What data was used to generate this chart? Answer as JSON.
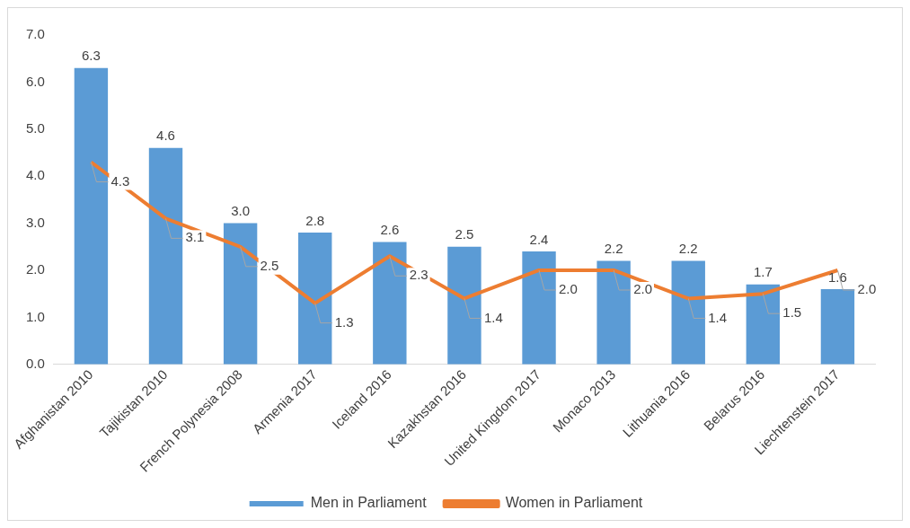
{
  "chart_data": {
    "type": "bar",
    "categories": [
      "Afghanistan 2010",
      "Tajikistan 2010",
      "French Polynesia 2008",
      "Armenia 2017",
      "Iceland 2016",
      "Kazakhstan 2016",
      "United Kingdom 2017",
      "Monaco 2013",
      "Lithuania 2016",
      "Belarus 2016",
      "Liechtenstein 2017"
    ],
    "series": [
      {
        "name": "Men in Parliament",
        "color": "#5b9bd5",
        "values": [
          6.3,
          4.6,
          3.0,
          2.8,
          2.6,
          2.5,
          2.4,
          2.2,
          2.2,
          1.7,
          1.6
        ],
        "value_labels": [
          "6.3",
          "4.6",
          "3.0",
          "2.8",
          "2.6",
          "2.5",
          "2.4",
          "2.2",
          "2.2",
          "1.7",
          "1.6"
        ]
      },
      {
        "name": "Women in Parliament",
        "type": "line",
        "color": "#ed7d31",
        "values": [
          4.3,
          3.1,
          2.5,
          1.3,
          2.3,
          1.4,
          2.0,
          2.0,
          1.4,
          1.5,
          2.0
        ],
        "value_labels": [
          "4.3",
          "3.1",
          "2.5",
          "1.3",
          "2.3",
          "1.4",
          "2.0",
          "2.0",
          "1.4",
          "1.5",
          "2.0"
        ]
      }
    ],
    "ylim": [
      0,
      7
    ],
    "yticks": [
      {
        "value": 0,
        "label": "0.0"
      },
      {
        "value": 1,
        "label": "1.0"
      },
      {
        "value": 2,
        "label": "2.0"
      },
      {
        "value": 3,
        "label": "3.0"
      },
      {
        "value": 4,
        "label": "4.0"
      },
      {
        "value": 5,
        "label": "5.0"
      },
      {
        "value": 6,
        "label": "6.0"
      },
      {
        "value": 7,
        "label": "7.0"
      }
    ],
    "legend": "bottom",
    "marker": "none",
    "line_style": "solid"
  }
}
